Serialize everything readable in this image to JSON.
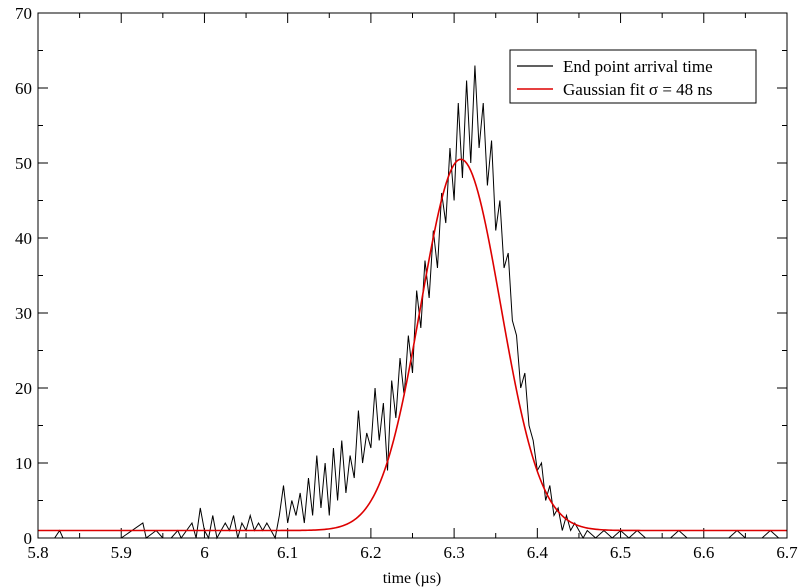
{
  "chart_data": {
    "type": "line",
    "title": "",
    "xlabel": "time (µs)",
    "ylabel": "",
    "xlim": [
      5.8,
      6.7
    ],
    "ylim": [
      0,
      70
    ],
    "x_ticks": [
      "5.8",
      "5.9",
      "6",
      "6.1",
      "6.2",
      "6.3",
      "6.4",
      "6.5",
      "6.6",
      "6.7"
    ],
    "y_ticks": [
      "0",
      "10",
      "20",
      "30",
      "40",
      "50",
      "60",
      "70"
    ],
    "grid": false,
    "legend_position": "top-right",
    "legend": [
      {
        "label": "End point arrival time",
        "color": "#000000"
      },
      {
        "label": "Gaussian fit σ = 48 ns",
        "color": "#dd0000"
      }
    ],
    "series": [
      {
        "name": "End point arrival time",
        "color": "#000000",
        "points": [
          [
            5.8,
            0
          ],
          [
            5.82,
            0
          ],
          [
            5.826,
            1
          ],
          [
            5.83,
            0
          ],
          [
            5.86,
            0
          ],
          [
            5.9,
            0
          ],
          [
            5.926,
            2
          ],
          [
            5.93,
            0
          ],
          [
            5.942,
            1
          ],
          [
            5.95,
            0
          ],
          [
            5.96,
            0
          ],
          [
            5.968,
            1
          ],
          [
            5.972,
            0
          ],
          [
            5.985,
            2
          ],
          [
            5.99,
            0
          ],
          [
            5.995,
            4
          ],
          [
            6.0,
            1
          ],
          [
            6.005,
            0
          ],
          [
            6.01,
            3
          ],
          [
            6.015,
            0
          ],
          [
            6.02,
            1
          ],
          [
            6.025,
            2
          ],
          [
            6.03,
            1
          ],
          [
            6.035,
            3
          ],
          [
            6.04,
            0
          ],
          [
            6.045,
            2
          ],
          [
            6.05,
            1
          ],
          [
            6.055,
            3
          ],
          [
            6.06,
            1
          ],
          [
            6.065,
            2
          ],
          [
            6.07,
            1
          ],
          [
            6.075,
            2
          ],
          [
            6.08,
            1
          ],
          [
            6.085,
            0
          ],
          [
            6.09,
            3
          ],
          [
            6.095,
            7
          ],
          [
            6.1,
            2
          ],
          [
            6.105,
            5
          ],
          [
            6.11,
            3
          ],
          [
            6.115,
            6
          ],
          [
            6.12,
            2
          ],
          [
            6.125,
            8
          ],
          [
            6.13,
            3
          ],
          [
            6.135,
            11
          ],
          [
            6.14,
            4
          ],
          [
            6.145,
            10
          ],
          [
            6.15,
            3
          ],
          [
            6.155,
            12
          ],
          [
            6.16,
            5
          ],
          [
            6.165,
            13
          ],
          [
            6.17,
            6
          ],
          [
            6.175,
            11
          ],
          [
            6.18,
            8
          ],
          [
            6.185,
            17
          ],
          [
            6.19,
            10
          ],
          [
            6.195,
            14
          ],
          [
            6.2,
            12
          ],
          [
            6.205,
            20
          ],
          [
            6.21,
            13
          ],
          [
            6.215,
            18
          ],
          [
            6.22,
            9
          ],
          [
            6.225,
            21
          ],
          [
            6.23,
            16
          ],
          [
            6.235,
            24
          ],
          [
            6.24,
            19
          ],
          [
            6.245,
            27
          ],
          [
            6.25,
            22
          ],
          [
            6.255,
            33
          ],
          [
            6.26,
            28
          ],
          [
            6.265,
            37
          ],
          [
            6.27,
            32
          ],
          [
            6.275,
            41
          ],
          [
            6.28,
            36
          ],
          [
            6.285,
            46
          ],
          [
            6.29,
            42
          ],
          [
            6.295,
            52
          ],
          [
            6.3,
            45
          ],
          [
            6.305,
            58
          ],
          [
            6.31,
            48
          ],
          [
            6.315,
            61
          ],
          [
            6.32,
            50
          ],
          [
            6.325,
            63
          ],
          [
            6.33,
            52
          ],
          [
            6.335,
            58
          ],
          [
            6.34,
            47
          ],
          [
            6.345,
            53
          ],
          [
            6.35,
            41
          ],
          [
            6.355,
            45
          ],
          [
            6.36,
            36
          ],
          [
            6.365,
            38
          ],
          [
            6.37,
            29
          ],
          [
            6.375,
            27
          ],
          [
            6.38,
            20
          ],
          [
            6.385,
            22
          ],
          [
            6.39,
            15
          ],
          [
            6.395,
            13
          ],
          [
            6.4,
            9
          ],
          [
            6.405,
            10
          ],
          [
            6.41,
            5
          ],
          [
            6.415,
            7
          ],
          [
            6.42,
            3
          ],
          [
            6.425,
            4
          ],
          [
            6.43,
            1
          ],
          [
            6.435,
            3
          ],
          [
            6.44,
            1
          ],
          [
            6.445,
            2
          ],
          [
            6.45,
            1
          ],
          [
            6.455,
            0
          ],
          [
            6.46,
            1
          ],
          [
            6.47,
            0
          ],
          [
            6.48,
            1
          ],
          [
            6.49,
            0
          ],
          [
            6.5,
            1
          ],
          [
            6.51,
            0
          ],
          [
            6.52,
            1
          ],
          [
            6.53,
            0
          ],
          [
            6.56,
            0
          ],
          [
            6.57,
            1
          ],
          [
            6.58,
            0
          ],
          [
            6.63,
            0
          ],
          [
            6.64,
            1
          ],
          [
            6.65,
            0
          ],
          [
            6.67,
            0
          ],
          [
            6.68,
            1
          ],
          [
            6.69,
            0
          ],
          [
            6.7,
            0
          ]
        ]
      },
      {
        "name": "Gaussian fit σ = 48 ns",
        "color": "#dd0000",
        "baseline": 1,
        "amplitude": 49.5,
        "mean": 6.308,
        "sigma": 0.048
      }
    ]
  }
}
